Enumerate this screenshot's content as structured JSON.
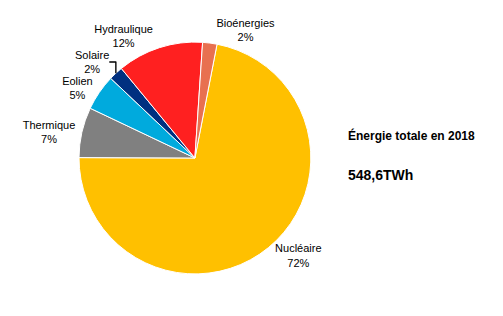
{
  "chart_data": {
    "type": "pie",
    "title": "Énergie totale en 2018",
    "subtitle": "548,6TWh",
    "categories": [
      "Nucléaire",
      "Thermique",
      "Eolien",
      "Solaire",
      "Hydraulique",
      "Bioénergies"
    ],
    "values": [
      72,
      7,
      5,
      2,
      12,
      2
    ],
    "value_labels": [
      "72%",
      "7%",
      "5%",
      "2%",
      "12%",
      "2%"
    ],
    "colors": [
      "#FFC000",
      "#808080",
      "#00AADD",
      "#003080",
      "#FF2020",
      "#E87050"
    ],
    "data_labels": true,
    "legend": false
  }
}
